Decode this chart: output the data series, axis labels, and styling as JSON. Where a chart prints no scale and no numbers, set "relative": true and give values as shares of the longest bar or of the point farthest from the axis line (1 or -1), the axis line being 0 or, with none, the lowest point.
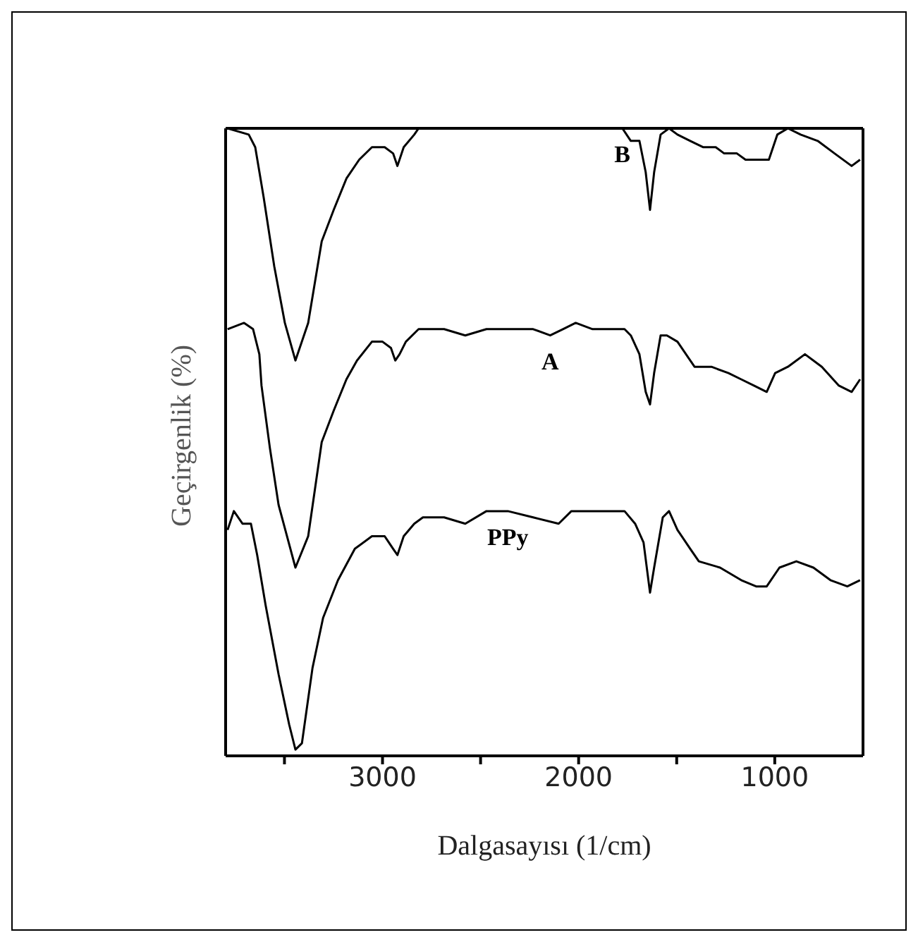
{
  "chart_data": {
    "type": "line",
    "relative": true,
    "xlabel": "Dalgasayısı (1/cm)",
    "ylabel": "Geçirgenlik (%)",
    "xlim": [
      3800,
      550
    ],
    "xticks": [
      3000,
      2000,
      1000,
      {
        "value": 3500,
        "label": null
      },
      {
        "value": 2500,
        "label": null
      },
      {
        "value": 1500,
        "label": null
      }
    ],
    "marker": "none",
    "line_style": "solid",
    "series": [
      {
        "name": "B",
        "color": "#000000",
        "x": [
          3790,
          3682,
          3649,
          3606,
          3552,
          3498,
          3444,
          3379,
          3310,
          3249,
          3184,
          3119,
          3054,
          2989,
          2946,
          2924,
          2892,
          2838,
          2816,
          2751,
          2578,
          2361,
          2145,
          1929,
          1777,
          1734,
          1690,
          1658,
          1636,
          1615,
          1582,
          1539,
          1496,
          1431,
          1366,
          1301,
          1258,
          1193,
          1149,
          1063,
          1030,
          987,
          933,
          868,
          781,
          695,
          608,
          565
        ],
        "values": [
          1.0,
          0.99,
          0.97,
          0.89,
          0.78,
          0.69,
          0.63,
          0.69,
          0.82,
          0.87,
          0.92,
          0.95,
          0.97,
          0.97,
          0.96,
          0.94,
          0.97,
          0.99,
          1.0,
          1.0,
          1.0,
          1.0,
          1.0,
          1.0,
          1.0,
          0.98,
          0.98,
          0.93,
          0.87,
          0.93,
          0.99,
          1.0,
          0.99,
          0.98,
          0.97,
          0.97,
          0.96,
          0.96,
          0.95,
          0.95,
          0.95,
          0.99,
          1.0,
          0.99,
          0.98,
          0.96,
          0.94,
          0.95
        ]
      },
      {
        "name": "A",
        "color": "#000000",
        "x": [
          3790,
          3706,
          3660,
          3628,
          3617,
          3574,
          3530,
          3444,
          3379,
          3310,
          3249,
          3184,
          3130,
          3054,
          3000,
          2957,
          2935,
          2913,
          2881,
          2816,
          2686,
          2578,
          2470,
          2361,
          2232,
          2145,
          2080,
          2015,
          1929,
          1766,
          1734,
          1690,
          1658,
          1636,
          1615,
          1582,
          1550,
          1496,
          1409,
          1323,
          1236,
          1171,
          1106,
          1041,
          998,
          933,
          846,
          760,
          673,
          608,
          565
        ],
        "values": [
          0.68,
          0.69,
          0.68,
          0.64,
          0.59,
          0.49,
          0.4,
          0.3,
          0.35,
          0.5,
          0.55,
          0.6,
          0.63,
          0.66,
          0.66,
          0.65,
          0.63,
          0.64,
          0.66,
          0.68,
          0.68,
          0.67,
          0.68,
          0.68,
          0.68,
          0.67,
          0.68,
          0.69,
          0.68,
          0.68,
          0.67,
          0.64,
          0.58,
          0.56,
          0.61,
          0.67,
          0.67,
          0.66,
          0.62,
          0.62,
          0.61,
          0.6,
          0.59,
          0.58,
          0.61,
          0.62,
          0.64,
          0.62,
          0.59,
          0.58,
          0.6
        ]
      },
      {
        "name": "PPy",
        "color": "#000000",
        "x": [
          3790,
          3758,
          3714,
          3671,
          3639,
          3596,
          3530,
          3476,
          3444,
          3411,
          3357,
          3303,
          3227,
          3141,
          3054,
          2989,
          2946,
          2924,
          2892,
          2838,
          2794,
          2686,
          2578,
          2470,
          2361,
          2232,
          2102,
          2037,
          1929,
          1766,
          1712,
          1669,
          1636,
          1615,
          1571,
          1539,
          1496,
          1431,
          1387,
          1279,
          1171,
          1095,
          1041,
          976,
          890,
          803,
          716,
          630,
          565
        ],
        "values": [
          0.36,
          0.39,
          0.37,
          0.37,
          0.32,
          0.24,
          0.13,
          0.05,
          0.01,
          0.02,
          0.14,
          0.22,
          0.28,
          0.33,
          0.35,
          0.35,
          0.33,
          0.32,
          0.35,
          0.37,
          0.38,
          0.38,
          0.37,
          0.39,
          0.39,
          0.38,
          0.37,
          0.39,
          0.39,
          0.39,
          0.37,
          0.34,
          0.26,
          0.3,
          0.38,
          0.39,
          0.36,
          0.33,
          0.31,
          0.3,
          0.28,
          0.27,
          0.27,
          0.3,
          0.31,
          0.3,
          0.28,
          0.27,
          0.28
        ]
      }
    ]
  }
}
